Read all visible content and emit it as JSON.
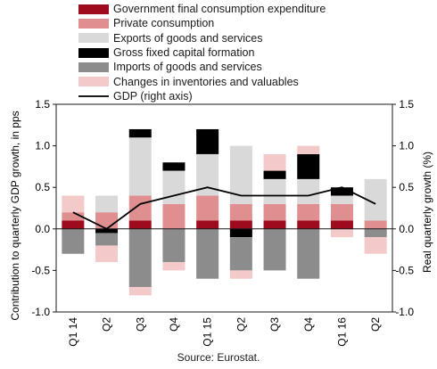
{
  "chart_data": {
    "type": "bar",
    "stacked": true,
    "categories": [
      "Q1 14",
      "Q2",
      "Q3",
      "Q4",
      "Q1 15",
      "Q2",
      "Q3",
      "Q4",
      "Q1 16",
      "Q2"
    ],
    "ylabel": "Contribution to quarterly GDP growth, in pps",
    "y2label": "Real quarterly growth (%)",
    "ylim": [
      -1.0,
      1.5
    ],
    "y2lim": [
      -1.0,
      1.5
    ],
    "yticks": [
      "1.5",
      "1.0",
      "0.5",
      "0.0",
      "-0.5",
      "-1.0"
    ],
    "y2ticks": [
      "1.5",
      "1.0",
      "0.5",
      "0.0",
      "-0.5",
      "-1.0"
    ],
    "legend_position": "top",
    "series": [
      {
        "name": "Government final consumption expenditure",
        "color": "#9e0b1e",
        "kind": "bar",
        "values": [
          0.1,
          0.0,
          0.1,
          0.0,
          0.1,
          0.1,
          0.1,
          0.1,
          0.1,
          0.0
        ]
      },
      {
        "name": "Private consumption",
        "color": "#df8f8f",
        "kind": "bar",
        "values": [
          0.1,
          0.2,
          0.3,
          0.3,
          0.3,
          0.2,
          0.2,
          0.2,
          0.2,
          0.1
        ]
      },
      {
        "name": "Exports of goods and services",
        "color": "#d9d9d9",
        "kind": "bar",
        "values": [
          0.0,
          0.2,
          0.7,
          0.4,
          0.5,
          0.7,
          0.3,
          0.3,
          0.1,
          0.5
        ]
      },
      {
        "name": "Gross fixed capital formation",
        "color": "#000000",
        "kind": "bar",
        "values": [
          0.0,
          -0.05,
          0.1,
          0.1,
          0.3,
          -0.1,
          0.1,
          0.3,
          0.1,
          0.0
        ]
      },
      {
        "name": "Imports of goods and services",
        "color": "#8c8c8c",
        "kind": "bar",
        "values": [
          -0.3,
          -0.15,
          -0.7,
          -0.4,
          -0.6,
          -0.4,
          -0.5,
          -0.6,
          0.0,
          -0.1
        ]
      },
      {
        "name": "Changes in inventories and valuables",
        "color": "#f3c9c9",
        "kind": "bar",
        "values": [
          0.2,
          -0.2,
          -0.1,
          -0.1,
          0.0,
          -0.1,
          0.2,
          0.1,
          -0.1,
          -0.2
        ]
      },
      {
        "name": "GDP (right axis)",
        "color": "#000000",
        "kind": "line",
        "axis": "right",
        "values": [
          0.2,
          0.0,
          0.3,
          0.4,
          0.5,
          0.4,
          0.4,
          0.4,
          0.5,
          0.3
        ]
      }
    ],
    "source": "Source: Eurostat."
  }
}
